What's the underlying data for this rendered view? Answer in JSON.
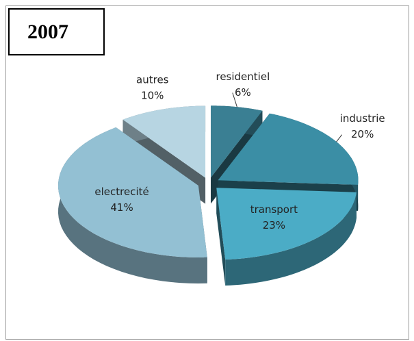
{
  "chart_data": {
    "type": "pie3d",
    "title": "2007",
    "categories": [
      "residentiel",
      "industrie",
      "transport",
      "electrecité",
      "autres"
    ],
    "values": [
      6,
      20,
      23,
      41,
      10
    ],
    "value_labels": [
      "6%",
      "20%",
      "23%",
      "41%",
      "10%"
    ],
    "colors": [
      "#3a7f93",
      "#3b8ea5",
      "#4bacc6",
      "#93c0d3",
      "#b7d5e2"
    ]
  }
}
